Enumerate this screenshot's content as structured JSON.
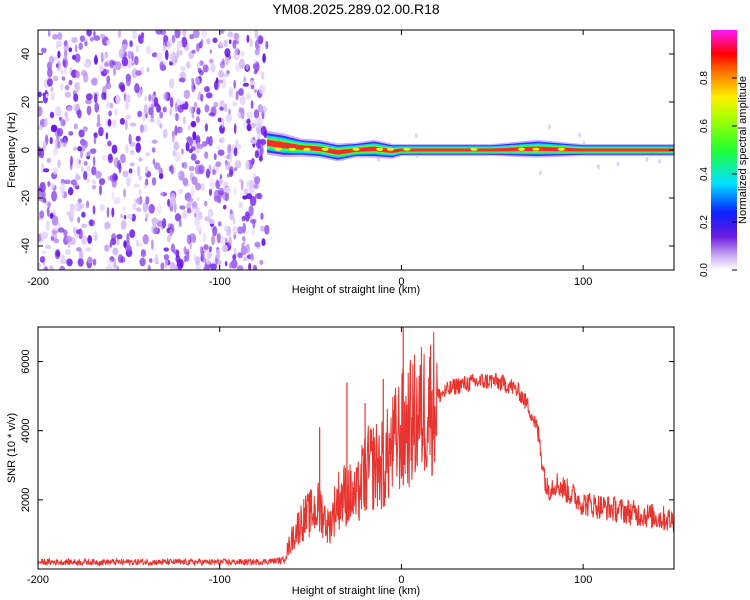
{
  "page_title": "YM08.2025.289.02.00.R18",
  "colors": {
    "snr_line": "#e8332e",
    "noise": "#7a2cf0",
    "background": "#ffffff",
    "axis": "#000000"
  },
  "chart_data": [
    {
      "type": "heatmap",
      "title": "YM08.2025.289.02.00.R18",
      "xlabel": "Height of straight line (km)",
      "ylabel": "Frequency (Hz)",
      "xlim": [
        -200,
        150
      ],
      "ylim": [
        -50,
        50
      ],
      "xticks": [
        -200,
        -100,
        0,
        100
      ],
      "yticks": [
        -40,
        -20,
        0,
        20,
        40
      ],
      "colorbar": {
        "label": "Normalized spectral amplitude",
        "range": [
          0,
          1
        ],
        "ticks": [
          0.0,
          0.2,
          0.4,
          0.6,
          0.8
        ],
        "colormap": "rainbow (white-purple-blue-cyan-green-yellow-orange-red-magenta)"
      },
      "regions": [
        {
          "x_range": [
            -200,
            -74
          ],
          "y_range": [
            -50,
            50
          ],
          "description_value": "noise",
          "amplitude": 0.2
        },
        {
          "x_range": [
            -74,
            150
          ],
          "y_range": [
            -2,
            3
          ],
          "description_value": "signal",
          "amplitude": 0.95
        }
      ],
      "signal_track": {
        "x": [
          -74,
          -65,
          -55,
          -45,
          -35,
          -25,
          -15,
          -5,
          0,
          20,
          50,
          75,
          100,
          150
        ],
        "frequency": [
          3,
          2,
          1,
          0.5,
          -1,
          0,
          0.5,
          -0.5,
          0,
          0,
          0,
          0.5,
          0,
          0
        ],
        "width": [
          4,
          4,
          3,
          3,
          3,
          2.5,
          3,
          2.5,
          2,
          2,
          2,
          3,
          2,
          2
        ]
      }
    },
    {
      "type": "line",
      "xlabel": "Height of straight line (km)",
      "ylabel": "SNR (10 * v/v)",
      "xlim": [
        -200,
        150
      ],
      "ylim": [
        0,
        7000
      ],
      "xticks": [
        -200,
        -100,
        0,
        100
      ],
      "yticks": [
        2000,
        4000,
        6000
      ],
      "series": [
        {
          "x": [
            -200,
            -180,
            -160,
            -140,
            -120,
            -100,
            -80,
            -65,
            -60,
            -55,
            -50,
            -45,
            -40,
            -35,
            -30,
            -25,
            -20,
            -15,
            -10,
            -5,
            0,
            5,
            10,
            20,
            30,
            40,
            50,
            60,
            65,
            70,
            75,
            80,
            85,
            90,
            100,
            110,
            120,
            130,
            140,
            150
          ],
          "values": [
            200,
            200,
            200,
            200,
            200,
            200,
            200,
            250,
            900,
            1400,
            1600,
            1800,
            1200,
            2000,
            2200,
            2000,
            2800,
            3000,
            3000,
            3500,
            4000,
            4200,
            4500,
            5000,
            5300,
            5400,
            5450,
            5300,
            5100,
            4700,
            4000,
            2300,
            2500,
            2300,
            1900,
            1800,
            1700,
            1600,
            1500,
            1400
          ],
          "spikes": [
            {
              "x": -45,
              "value": 4100
            },
            {
              "x": -30,
              "value": 5400
            },
            {
              "x": -20,
              "value": 4800
            },
            {
              "x": -10,
              "value": 5500
            },
            {
              "x": 1,
              "value": 7000
            }
          ]
        }
      ]
    }
  ]
}
